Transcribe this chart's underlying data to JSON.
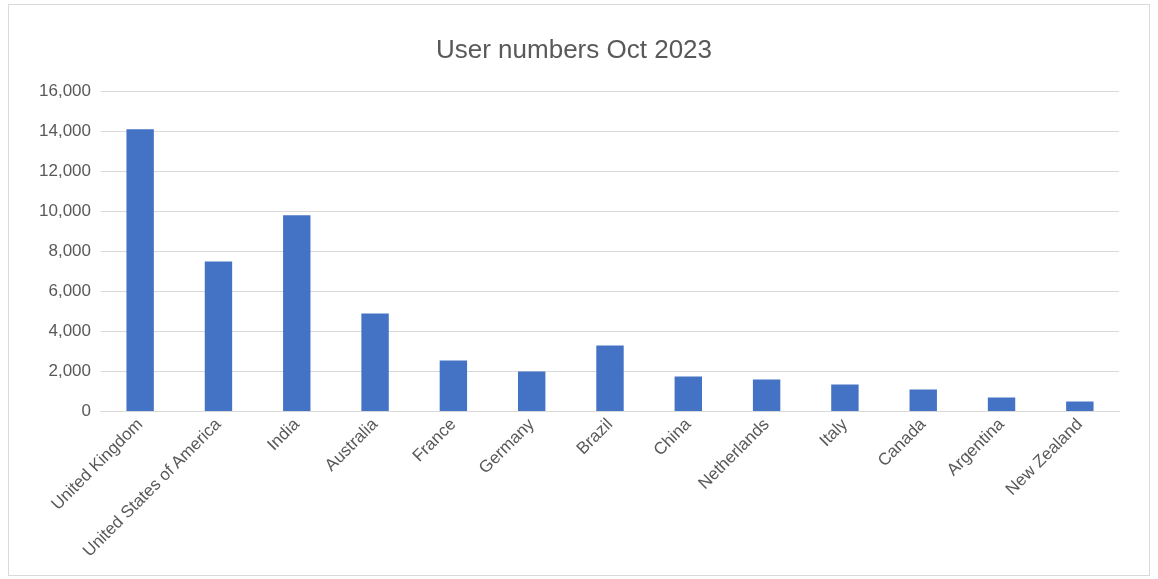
{
  "chart_data": {
    "type": "bar",
    "title": "User numbers Oct 2023",
    "categories": [
      "United Kingdom",
      "United States of America",
      "India",
      "Australia",
      "France",
      "Germany",
      "Brazil",
      "China",
      "Netherlands",
      "Italy",
      "Canada",
      "Argentina",
      "New Zealand"
    ],
    "values": [
      14100,
      7500,
      9800,
      4900,
      2550,
      2000,
      3300,
      1750,
      1600,
      1350,
      1100,
      700,
      500
    ],
    "color": "#4472c4",
    "ylim": [
      0,
      16000
    ],
    "yticks": [
      0,
      {
        "value": 2000,
        "label": "2,000"
      },
      {
        "value": 4000,
        "label": "4,000"
      },
      {
        "value": 6000,
        "label": "6,000"
      },
      {
        "value": 8000,
        "label": "8,000"
      },
      {
        "value": 10000,
        "label": "10,000"
      },
      {
        "value": 12000,
        "label": "12,000"
      },
      {
        "value": 14000,
        "label": "14,000"
      },
      {
        "value": 16000,
        "label": "16,000"
      }
    ],
    "grid": "y",
    "legend": false
  }
}
